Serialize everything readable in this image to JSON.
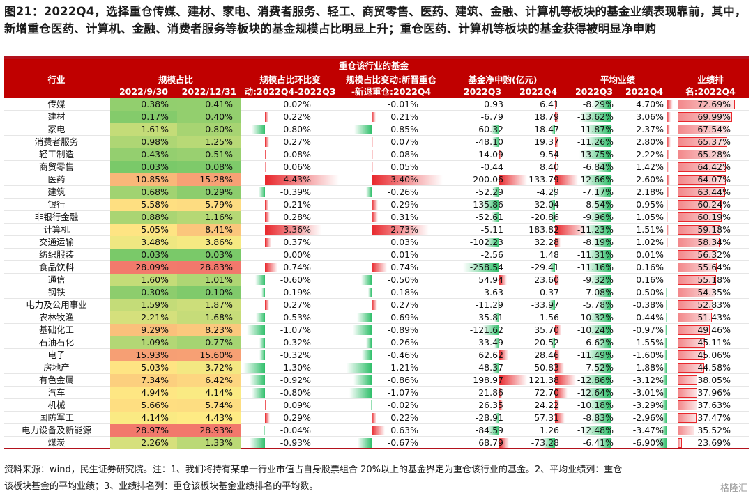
{
  "title": "图21：2022Q4，选择重仓传媒、建材、家电、消费者服务、轻工、商贸零售、医药、建筑、金融、计算机等板块的基金业绩表现靠前，其中，新增重仓医药、计算机、金融、消费者服务等板块的基金规模占比明显上升；重仓医药、计算机等板块的基金获得被明显净申购",
  "header": {
    "group_title": "重仓该行业的基金",
    "industry": "行业",
    "scale_share": "规模占比",
    "scale_d1": "2022/9/30",
    "scale_d2": "2022/12/31",
    "qoq_l1": "规模占比环比变",
    "qoq_l2": "动:2022Q4-2022Q3",
    "newdel_l1": "规模占比变动:新晋重仓",
    "newdel_l2": "-新退重仓:2022Q4",
    "flow_l1": "基金净申购(亿元)",
    "flow_q3": "2022Q3",
    "flow_q4": "2022Q4",
    "perf_l1": "平均业绩",
    "perf_q3": "2022Q3",
    "perf_q4": "2022Q4",
    "rank_l1": "业绩排",
    "rank_l2": "名:2022Q4"
  },
  "chart_data": {
    "type": "table",
    "columns": [
      "行业",
      "规模占比 2022/9/30",
      "规模占比 2022/12/31",
      "规模占比环比变动:2022Q4-2022Q3",
      "规模占比变动:新晋重仓-新退重仓:2022Q4",
      "基金净申购(亿元) 2022Q3",
      "基金净申购(亿元) 2022Q4",
      "平均业绩 2022Q3",
      "平均业绩 2022Q4",
      "业绩排名:2022Q4"
    ],
    "rows": [
      {
        "ind": "传媒",
        "s1": "0.38%",
        "s2": "0.41%",
        "qoq": "0.02%",
        "nd": "-0.01%",
        "f3": "0.93",
        "f4": "6.41",
        "p3": "-8.29%",
        "p4": "4.70%",
        "rk": "72.69%"
      },
      {
        "ind": "建材",
        "s1": "0.17%",
        "s2": "0.40%",
        "qoq": "0.22%",
        "nd": "0.21%",
        "f3": "-6.79",
        "f4": "18.79",
        "p3": "-13.62%",
        "p4": "3.06%",
        "rk": "69.99%"
      },
      {
        "ind": "家电",
        "s1": "1.61%",
        "s2": "0.80%",
        "qoq": "-0.80%",
        "nd": "-0.85%",
        "f3": "-60.32",
        "f4": "-18.47",
        "p3": "-11.87%",
        "p4": "2.37%",
        "rk": "67.54%"
      },
      {
        "ind": "消费者服务",
        "s1": "0.98%",
        "s2": "1.25%",
        "qoq": "0.27%",
        "nd": "0.07%",
        "f3": "-48.10",
        "f4": "19.37",
        "p3": "-11.26%",
        "p4": "2.80%",
        "rk": "65.37%"
      },
      {
        "ind": "轻工制造",
        "s1": "0.43%",
        "s2": "0.51%",
        "qoq": "0.08%",
        "nd": "0.08%",
        "f3": "14.09",
        "f4": "9.54",
        "p3": "-13.75%",
        "p4": "2.22%",
        "rk": "65.28%"
      },
      {
        "ind": "商贸零售",
        "s1": "0.03%",
        "s2": "0.08%",
        "qoq": "0.06%",
        "nd": "0.05%",
        "f3": "-0.44",
        "f4": "8.40",
        "p3": "-6.84%",
        "p4": "1.42%",
        "rk": "64.42%"
      },
      {
        "ind": "医药",
        "s1": "10.85%",
        "s2": "15.28%",
        "qoq": "4.43%",
        "nd": "3.40%",
        "f3": "200.06",
        "f4": "133.79",
        "p3": "-12.66%",
        "p4": "2.60%",
        "rk": "64.07%"
      },
      {
        "ind": "建筑",
        "s1": "0.68%",
        "s2": "0.29%",
        "qoq": "-0.39%",
        "nd": "-0.26%",
        "f3": "-52.29",
        "f4": "-4.29",
        "p3": "-7.17%",
        "p4": "2.18%",
        "rk": "63.44%"
      },
      {
        "ind": "银行",
        "s1": "5.58%",
        "s2": "5.79%",
        "qoq": "0.21%",
        "nd": "0.29%",
        "f3": "-135.86",
        "f4": "-32.04",
        "p3": "-8.54%",
        "p4": "0.95%",
        "rk": "60.24%"
      },
      {
        "ind": "非银行金融",
        "s1": "0.88%",
        "s2": "1.16%",
        "qoq": "0.28%",
        "nd": "0.31%",
        "f3": "-52.61",
        "f4": "-20.86",
        "p3": "-9.96%",
        "p4": "1.05%",
        "rk": "60.19%"
      },
      {
        "ind": "计算机",
        "s1": "5.05%",
        "s2": "8.41%",
        "qoq": "3.36%",
        "nd": "2.73%",
        "f3": "-5.11",
        "f4": "183.82",
        "p3": "-11.23%",
        "p4": "1.51%",
        "rk": "59.18%"
      },
      {
        "ind": "交通运输",
        "s1": "3.48%",
        "s2": "3.86%",
        "qoq": "0.37%",
        "nd": "0.03%",
        "f3": "-102.23",
        "f4": "32.28",
        "p3": "-8.19%",
        "p4": "1.02%",
        "rk": "58.34%"
      },
      {
        "ind": "纺织服装",
        "s1": "0.03%",
        "s2": "0.03%",
        "qoq": "0.00%",
        "nd": "0.01%",
        "f3": "-2.56",
        "f4": "1.48",
        "p3": "-11.31%",
        "p4": "0.01%",
        "rk": "56.32%"
      },
      {
        "ind": "食品饮料",
        "s1": "28.09%",
        "s2": "28.83%",
        "qoq": "0.74%",
        "nd": "0.74%",
        "f3": "-258.54",
        "f4": "-29.41",
        "p3": "-11.16%",
        "p4": "0.16%",
        "rk": "55.64%"
      },
      {
        "ind": "通信",
        "s1": "1.60%",
        "s2": "1.01%",
        "qoq": "-0.60%",
        "nd": "-0.50%",
        "f3": "54.94",
        "f4": "23.60",
        "p3": "-9.32%",
        "p4": "0.16%",
        "rk": "55.18%"
      },
      {
        "ind": "钢铁",
        "s1": "0.30%",
        "s2": "0.10%",
        "qoq": "-0.19%",
        "nd": "-0.18%",
        "f3": "-3.63",
        "f4": "-0.37",
        "p3": "-7.08%",
        "p4": "-0.50%",
        "rk": "54.35%"
      },
      {
        "ind": "电力及公用事业",
        "s1": "1.59%",
        "s2": "1.87%",
        "qoq": "0.27%",
        "nd": "0.27%",
        "f3": "-11.29",
        "f4": "-33.97",
        "p3": "-5.78%",
        "p4": "-0.38%",
        "rk": "52.83%"
      },
      {
        "ind": "农林牧渔",
        "s1": "2.21%",
        "s2": "1.68%",
        "qoq": "-0.53%",
        "nd": "-0.69%",
        "f3": "-35.81",
        "f4": "1.56",
        "p3": "-10.32%",
        "p4": "-0.44%",
        "rk": "51.43%"
      },
      {
        "ind": "基础化工",
        "s1": "9.29%",
        "s2": "8.23%",
        "qoq": "-1.07%",
        "nd": "-0.89%",
        "f3": "-121.62",
        "f4": "35.70",
        "p3": "-10.24%",
        "p4": "-0.97%",
        "rk": "49.46%"
      },
      {
        "ind": "石油石化",
        "s1": "1.09%",
        "s2": "0.77%",
        "qoq": "-0.32%",
        "nd": "-0.26%",
        "f3": "-33.49",
        "f4": "-20.52",
        "p3": "-6.62%",
        "p4": "-1.55%",
        "rk": "45.11%"
      },
      {
        "ind": "电子",
        "s1": "15.93%",
        "s2": "15.60%",
        "qoq": "-0.32%",
        "nd": "-0.46%",
        "f3": "62.62",
        "f4": "28.46",
        "p3": "-11.49%",
        "p4": "-1.60%",
        "rk": "45.06%"
      },
      {
        "ind": "房地产",
        "s1": "5.03%",
        "s2": "3.72%",
        "qoq": "-1.30%",
        "nd": "-1.21%",
        "f3": "-48.37",
        "f4": "50.83",
        "p3": "-7.52%",
        "p4": "-1.88%",
        "rk": "44.58%"
      },
      {
        "ind": "有色金属",
        "s1": "7.34%",
        "s2": "6.42%",
        "qoq": "-0.92%",
        "nd": "-0.86%",
        "f3": "198.97",
        "f4": "121.38",
        "p3": "-12.86%",
        "p4": "-3.12%",
        "rk": "38.05%"
      },
      {
        "ind": "汽车",
        "s1": "4.94%",
        "s2": "4.14%",
        "qoq": "-0.80%",
        "nd": "-1.07%",
        "f3": "21.86",
        "f4": "72.70",
        "p3": "-12.64%",
        "p4": "-3.01%",
        "rk": "37.96%"
      },
      {
        "ind": "机械",
        "s1": "5.66%",
        "s2": "5.74%",
        "qoq": "0.09%",
        "nd": "-0.02%",
        "f3": "26.35",
        "f4": "24.22",
        "p3": "-10.18%",
        "p4": "-3.29%",
        "rk": "37.63%"
      },
      {
        "ind": "国防军工",
        "s1": "4.14%",
        "s2": "4.43%",
        "qoq": "0.29%",
        "nd": "0.22%",
        "f3": "-28.91",
        "f4": "57.31",
        "p3": "-8.83%",
        "p4": "-2.96%",
        "rk": "37.47%"
      },
      {
        "ind": "电力设备及新能源",
        "s1": "28.97%",
        "s2": "28.93%",
        "qoq": "-0.04%",
        "nd": "0.63%",
        "f3": "-84.59",
        "f4": "1.26",
        "p3": "-12.48%",
        "p4": "-3.47%",
        "rk": "35.52%"
      },
      {
        "ind": "煤炭",
        "s1": "2.26%",
        "s2": "1.33%",
        "qoq": "-0.93%",
        "nd": "-0.67%",
        "f3": "68.79",
        "f4": "-73.28",
        "p3": "-6.41%",
        "p4": "-6.90%",
        "rk": "23.69%"
      }
    ]
  },
  "note_l1": "资料来源：wind，民生证券研究院。注：1、我们将持有某单一行业市值占自身股票组合 20%以上的基金界定为重仓该行业的基金。2、平均业绩列：重仓",
  "note_l2": "该板块基金的平均业绩；3、业绩排名列：重仓该板块基金业绩排名的平均数。",
  "watermark": "格隆汇",
  "colors": {
    "red": "#e8262b",
    "green": "#2fbf6a",
    "header": "#c00000"
  }
}
